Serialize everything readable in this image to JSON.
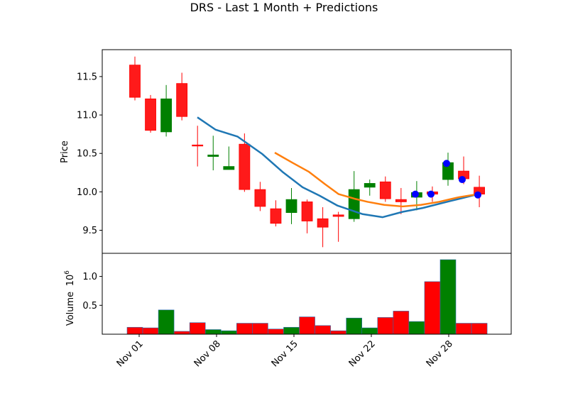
{
  "chart_data": {
    "type": "candlestick",
    "title": "DRS - Last 1 Month + Predictions",
    "price_panel": {
      "ylabel": "Price",
      "ylim": [
        9.2,
        11.85
      ],
      "yticks": [
        9.5,
        10.0,
        10.5,
        11.0,
        11.5
      ],
      "ytick_labels": [
        "9.5",
        "10.0",
        "10.5",
        "11.0",
        "11.5"
      ]
    },
    "volume_panel": {
      "ylabel": "Volume",
      "scale_label": "10",
      "scale_exponent": "6",
      "ylim": [
        0,
        1.4
      ],
      "yticks": [
        0.5,
        1.0
      ],
      "ytick_labels": [
        "0.5",
        "1.0"
      ]
    },
    "xaxis": {
      "tick_labels": [
        "Nov 01",
        "Nov 08",
        "Nov 15",
        "Nov 22",
        "Nov 28"
      ],
      "tick_days": [
        1,
        8,
        15,
        22,
        28
      ],
      "day_range": [
        -2.1,
        33.0
      ]
    },
    "candles": [
      {
        "date": "Oct 31",
        "day": 0,
        "open": 11.65,
        "high": 11.76,
        "low": 11.19,
        "close": 11.23,
        "volume": 0.12,
        "dir": "down"
      },
      {
        "date": "Nov 01",
        "day": 1,
        "open": 11.21,
        "high": 11.26,
        "low": 10.77,
        "close": 10.8,
        "volume": 0.11,
        "dir": "down"
      },
      {
        "date": "Nov 02",
        "day": 2,
        "open": 10.78,
        "high": 11.39,
        "low": 10.72,
        "close": 11.21,
        "volume": 0.42,
        "dir": "up"
      },
      {
        "date": "Nov 03",
        "day": 3,
        "open": 11.41,
        "high": 11.55,
        "low": 10.93,
        "close": 10.98,
        "volume": 0.05,
        "dir": "down"
      },
      {
        "date": "Nov 06",
        "day": 4,
        "open": 10.61,
        "high": 10.86,
        "low": 10.33,
        "close": 10.6,
        "volume": 0.2,
        "dir": "down"
      },
      {
        "date": "Nov 07",
        "day": 5,
        "open": 10.46,
        "high": 10.73,
        "low": 10.28,
        "close": 10.48,
        "volume": 0.08,
        "dir": "up"
      },
      {
        "date": "Nov 08",
        "day": 6,
        "open": 10.29,
        "high": 10.59,
        "low": 10.29,
        "close": 10.33,
        "volume": 0.06,
        "dir": "up"
      },
      {
        "date": "Nov 09",
        "day": 7,
        "open": 10.62,
        "high": 10.76,
        "low": 10.0,
        "close": 10.03,
        "volume": 0.19,
        "dir": "down"
      },
      {
        "date": "Nov 10",
        "day": 8,
        "open": 10.03,
        "high": 10.13,
        "low": 9.75,
        "close": 9.81,
        "volume": 0.19,
        "dir": "down"
      },
      {
        "date": "Nov 13",
        "day": 9,
        "open": 9.78,
        "high": 9.89,
        "low": 9.55,
        "close": 9.59,
        "volume": 0.09,
        "dir": "down"
      },
      {
        "date": "Nov 14",
        "day": 10,
        "open": 9.73,
        "high": 10.05,
        "low": 9.58,
        "close": 9.9,
        "volume": 0.12,
        "dir": "up"
      },
      {
        "date": "Nov 15",
        "day": 11,
        "open": 9.87,
        "high": 9.9,
        "low": 9.46,
        "close": 9.62,
        "volume": 0.3,
        "dir": "down"
      },
      {
        "date": "Nov 16",
        "day": 12,
        "open": 9.65,
        "high": 9.8,
        "low": 9.28,
        "close": 9.54,
        "volume": 0.15,
        "dir": "down"
      },
      {
        "date": "Nov 17",
        "day": 13,
        "open": 9.7,
        "high": 9.74,
        "low": 9.35,
        "close": 9.68,
        "volume": 0.06,
        "dir": "down"
      },
      {
        "date": "Nov 20",
        "day": 14,
        "open": 9.65,
        "high": 10.27,
        "low": 9.61,
        "close": 10.03,
        "volume": 0.28,
        "dir": "up"
      },
      {
        "date": "Nov 21",
        "day": 15,
        "open": 10.06,
        "high": 10.16,
        "low": 9.95,
        "close": 10.11,
        "volume": 0.11,
        "dir": "up"
      },
      {
        "date": "Nov 22",
        "day": 16,
        "open": 10.13,
        "high": 10.2,
        "low": 9.87,
        "close": 9.91,
        "volume": 0.29,
        "dir": "down"
      },
      {
        "date": "Nov 24",
        "day": 17,
        "open": 9.9,
        "high": 10.05,
        "low": 9.71,
        "close": 9.87,
        "volume": 0.4,
        "dir": "down"
      },
      {
        "date": "Nov 27",
        "day": 18,
        "open": 9.93,
        "high": 10.14,
        "low": 9.76,
        "close": 9.99,
        "volume": 0.22,
        "dir": "up"
      },
      {
        "date": "Nov 28",
        "day": 19,
        "open": 10.0,
        "high": 10.07,
        "low": 9.87,
        "close": 9.97,
        "volume": 0.91,
        "dir": "down"
      },
      {
        "date": "Nov 29",
        "day": 20,
        "open": 10.16,
        "high": 10.51,
        "low": 10.08,
        "close": 10.38,
        "volume": 1.29,
        "dir": "up"
      },
      {
        "date": "Nov 30",
        "day": 21,
        "open": 10.27,
        "high": 10.46,
        "low": 10.1,
        "close": 10.17,
        "volume": 0.19,
        "dir": "down"
      },
      {
        "date": "Dec 01",
        "day": 22,
        "open": 10.06,
        "high": 10.21,
        "low": 9.8,
        "close": 9.97,
        "volume": 0.19,
        "dir": "down"
      }
    ],
    "series": [
      {
        "color": "#1f77b4",
        "points": [
          [
            5.0,
            10.97
          ],
          [
            6.8,
            10.81
          ],
          [
            9.0,
            10.72
          ],
          [
            11.5,
            10.49
          ],
          [
            13.5,
            10.26
          ],
          [
            15.5,
            10.06
          ],
          [
            17.2,
            9.95
          ],
          [
            19.0,
            9.82
          ],
          [
            21.5,
            9.71
          ],
          [
            23.5,
            9.67
          ],
          [
            25.5,
            9.74
          ],
          [
            27.5,
            9.79
          ],
          [
            29.3,
            9.85
          ],
          [
            31.5,
            9.92
          ],
          [
            33.0,
            9.97
          ]
        ]
      },
      {
        "color": "#ff7f0e",
        "points": [
          [
            13.0,
            10.51
          ],
          [
            15.3,
            10.38
          ],
          [
            17.5,
            10.26
          ],
          [
            19.6,
            10.1
          ],
          [
            21.4,
            9.97
          ],
          [
            23.5,
            9.91
          ],
          [
            25.2,
            9.87
          ],
          [
            27.4,
            9.83
          ],
          [
            29.8,
            9.81
          ],
          [
            32.2,
            9.83
          ],
          [
            34.6,
            9.87
          ],
          [
            37.2,
            9.93
          ],
          [
            39.7,
            9.97
          ]
        ]
      }
    ],
    "predictions": {
      "color": "#0000ff",
      "points": [
        [
          25.6,
          9.97
        ],
        [
          27.6,
          9.97
        ],
        [
          29.5,
          10.37
        ],
        [
          31.5,
          10.16
        ],
        [
          33.5,
          9.96
        ]
      ]
    },
    "colors": {
      "up": "#008000",
      "down": "#ff0000",
      "down_fill": "#ff1a1a"
    }
  }
}
